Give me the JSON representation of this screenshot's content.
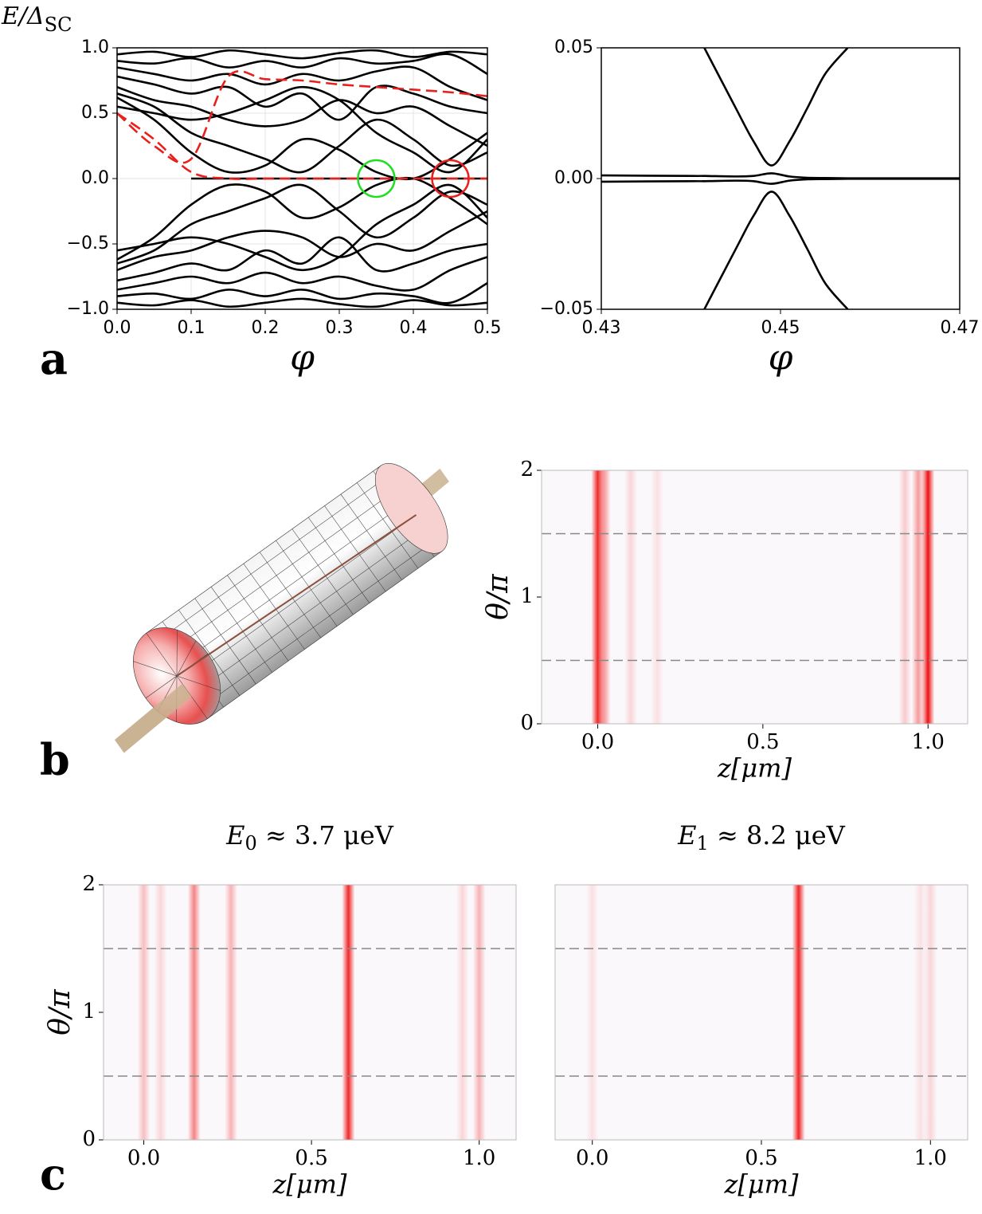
{
  "panel_labels": [
    "a",
    "b",
    "c"
  ],
  "chart_data": [
    {
      "type": "line",
      "xlabel": "φ",
      "ylabel": {
        "text": "E/Δ",
        "sub": "SC"
      },
      "x": [
        0,
        0.05,
        0.1,
        0.15,
        0.2,
        0.25,
        0.3,
        0.35,
        0.4,
        0.45,
        0.5
      ],
      "xlim": [
        0,
        0.5
      ],
      "ylim": [
        -1,
        1
      ],
      "grid": true,
      "xticks": [
        {
          "value": 0,
          "label": "0.0"
        },
        0.1,
        0.2,
        0.3,
        0.4,
        0.5
      ],
      "yticks": [
        {
          "value": -1,
          "label": "−1.0"
        },
        {
          "value": -0.5,
          "label": "−0.5"
        },
        {
          "value": 0,
          "label": "0.0"
        },
        0.5,
        {
          "value": 1,
          "label": "1.0"
        }
      ],
      "series": [
        {
          "color": "#000000",
          "values": [
            0.62,
            0.45,
            0.2,
            0.05,
            0.1,
            0.3,
            0.22,
            0.05,
            0.0,
            0.15,
            0.35
          ]
        },
        {
          "color": "#000000",
          "values": [
            0.65,
            0.55,
            0.35,
            0.25,
            0.15,
            0.05,
            0.25,
            0.45,
            0.3,
            0.1,
            0.2
          ]
        },
        {
          "color": "#000000",
          "values": [
            0.7,
            0.6,
            0.55,
            0.45,
            0.4,
            0.45,
            0.6,
            0.5,
            0.55,
            0.4,
            0.25
          ]
        },
        {
          "color": "#000000",
          "values": [
            0.78,
            0.72,
            0.65,
            0.7,
            0.55,
            0.65,
            0.45,
            0.7,
            0.65,
            0.55,
            0.5
          ]
        },
        {
          "color": "#000000",
          "values": [
            0.85,
            0.8,
            0.75,
            0.8,
            0.72,
            0.8,
            0.75,
            0.82,
            0.85,
            0.7,
            0.6
          ]
        },
        {
          "color": "#000000",
          "values": [
            0.9,
            0.88,
            0.92,
            0.85,
            0.9,
            0.85,
            0.92,
            0.88,
            0.9,
            0.95,
            0.8
          ]
        },
        {
          "color": "#000000",
          "values": [
            0.95,
            0.97,
            0.93,
            0.98,
            0.95,
            0.92,
            0.96,
            0.98,
            0.93,
            0.97,
            0.95
          ]
        },
        {
          "color": "#000000",
          "values": [
            0.55,
            0.5,
            0.45,
            0.5,
            0.6,
            0.7,
            0.6,
            0.35,
            0.2,
            0.05,
            0.3
          ]
        },
        {
          "color": "#000000",
          "values": [
            -0.62,
            -0.45,
            -0.2,
            -0.05,
            -0.1,
            -0.3,
            -0.22,
            -0.05,
            0.0,
            -0.15,
            -0.35
          ]
        },
        {
          "color": "#000000",
          "values": [
            -0.65,
            -0.55,
            -0.35,
            -0.25,
            -0.15,
            -0.05,
            -0.25,
            -0.45,
            -0.3,
            -0.1,
            -0.2
          ]
        },
        {
          "color": "#000000",
          "values": [
            -0.7,
            -0.6,
            -0.55,
            -0.45,
            -0.4,
            -0.45,
            -0.6,
            -0.5,
            -0.55,
            -0.4,
            -0.25
          ]
        },
        {
          "color": "#000000",
          "values": [
            -0.78,
            -0.72,
            -0.65,
            -0.7,
            -0.55,
            -0.65,
            -0.45,
            -0.7,
            -0.65,
            -0.55,
            -0.5
          ]
        },
        {
          "color": "#000000",
          "values": [
            -0.85,
            -0.8,
            -0.75,
            -0.8,
            -0.72,
            -0.8,
            -0.75,
            -0.82,
            -0.85,
            -0.7,
            -0.6
          ]
        },
        {
          "color": "#000000",
          "values": [
            -0.9,
            -0.88,
            -0.92,
            -0.85,
            -0.9,
            -0.85,
            -0.92,
            -0.88,
            -0.9,
            -0.95,
            -0.8
          ]
        },
        {
          "color": "#000000",
          "values": [
            -0.95,
            -0.97,
            -0.93,
            -0.98,
            -0.95,
            -0.92,
            -0.96,
            -0.98,
            -0.93,
            -0.97,
            -0.95
          ]
        },
        {
          "color": "#000000",
          "values": [
            -0.55,
            -0.5,
            -0.45,
            -0.5,
            -0.6,
            -0.7,
            -0.6,
            -0.35,
            -0.2,
            -0.05,
            -0.3
          ]
        },
        {
          "color": "#000000",
          "values": [
            null,
            null,
            0,
            0,
            0,
            0,
            0,
            0,
            0,
            0,
            0
          ]
        },
        {
          "color": "#e8201e",
          "style": "dashed",
          "values": [
            0.5,
            0.3,
            0.05,
            0,
            0,
            0,
            0,
            0,
            0,
            0,
            0
          ]
        },
        {
          "color": "#e8201e",
          "style": "dashed",
          "values": [
            0.5,
            0.25,
            0.15,
            0.78,
            0.76,
            0.75,
            0.72,
            0.7,
            0.68,
            0.66,
            0.63
          ]
        }
      ],
      "annotations": [
        {
          "x": 0.35,
          "y": 0,
          "color": "#22dd22"
        },
        {
          "x": 0.45,
          "y": 0,
          "color": "#e8201e"
        }
      ]
    },
    {
      "type": "line",
      "xlabel": "φ",
      "x": [
        0.43,
        0.44,
        0.4415,
        0.445,
        0.447,
        0.449,
        0.451,
        0.453,
        0.455,
        0.4575,
        0.46,
        0.47
      ],
      "xlim": [
        0.43,
        0.47
      ],
      "ylim": [
        -0.05,
        0.05
      ],
      "xticks": [
        0.43,
        0.45,
        0.47
      ],
      "yticks": [
        {
          "value": -0.05,
          "label": "−0.05"
        },
        {
          "value": 0,
          "label": "0.00"
        },
        0.05
      ],
      "series": [
        {
          "color": "#000000",
          "values": [
            null,
            null,
            0.05,
            0.027,
            0.0142,
            0.005,
            0.0142,
            0.027,
            0.0401,
            0.05,
            null,
            null
          ]
        },
        {
          "color": "#000000",
          "values": [
            null,
            null,
            -0.05,
            -0.027,
            -0.0142,
            -0.005,
            -0.0142,
            -0.027,
            -0.0401,
            -0.05,
            null,
            null
          ]
        },
        {
          "color": "#000000",
          "values": [
            0.0012,
            0.001,
            0.001,
            0.0008,
            0.001,
            0.002,
            0.0008,
            0.0003,
            0.0002,
            0.0001,
            0.0001,
            0.0001
          ]
        },
        {
          "color": "#000000",
          "values": [
            -0.0012,
            -0.001,
            -0.001,
            -0.0008,
            -0.001,
            -0.002,
            -0.0008,
            -0.0003,
            -0.0002,
            -0.0001,
            -0.0001,
            -0.0001
          ]
        }
      ]
    },
    {
      "type": "heatmap",
      "xlabel": "z[μm]",
      "ylabel": "θ/π",
      "xlim": [
        -0.17,
        1.12
      ],
      "ylim": [
        0,
        2
      ],
      "xticks": [
        {
          "value": 0,
          "label": "0.0"
        },
        0.5,
        {
          "value": 1,
          "label": "1.0"
        }
      ],
      "yticks": [
        0,
        1,
        2
      ],
      "hlines": [
        0.5,
        1.5
      ],
      "color": "#ee1111",
      "x": [
        0.0,
        0.02,
        0.1,
        0.18,
        0.93,
        0.97,
        1.0
      ],
      "values": [
        0.9,
        0.4,
        0.15,
        0.1,
        0.2,
        0.4,
        1.0
      ]
    },
    {
      "type": "heatmap",
      "title": {
        "text": "E",
        "sub": "0",
        "rest": " ≈ 3.7 μeV"
      },
      "xlabel": "z[μm]",
      "ylabel": "θ/π",
      "xlim": [
        -0.12,
        1.11
      ],
      "ylim": [
        0,
        2
      ],
      "xticks": [
        {
          "value": 0,
          "label": "0.0"
        },
        0.5,
        {
          "value": 1,
          "label": "1.0"
        }
      ],
      "yticks": [
        0,
        1,
        2
      ],
      "hlines": [
        0.5,
        1.5
      ],
      "color": "#ee1111",
      "x": [
        0.0,
        0.05,
        0.15,
        0.26,
        0.61,
        0.95,
        1.0
      ],
      "values": [
        0.25,
        0.15,
        0.5,
        0.3,
        0.9,
        0.15,
        0.3
      ]
    },
    {
      "type": "heatmap",
      "title": {
        "text": "E",
        "sub": "1",
        "rest": " ≈ 8.2 μeV"
      },
      "xlabel": "z[μm]",
      "xlim": [
        -0.11,
        1.11
      ],
      "ylim": [
        0,
        2
      ],
      "xticks": [
        {
          "value": 0,
          "label": "0.0"
        },
        0.5,
        {
          "value": 1,
          "label": "1.0"
        }
      ],
      "hlines": [
        0.5,
        1.5
      ],
      "color": "#ee1111",
      "x": [
        0.0,
        0.61,
        0.97,
        1.0
      ],
      "values": [
        0.1,
        0.9,
        0.1,
        0.15
      ]
    }
  ]
}
